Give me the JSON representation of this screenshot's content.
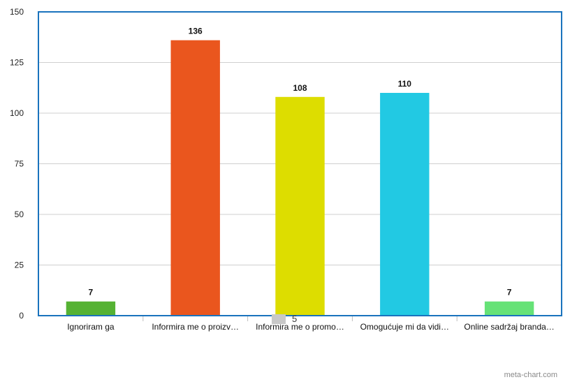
{
  "chart_data": {
    "type": "bar",
    "categories": [
      "Ignoriram ga",
      "Informira me o proizv…",
      "Informira me o promo…",
      "Omogućuje mi da vidi…",
      "Online sadržaj branda…"
    ],
    "values": [
      7,
      136,
      108,
      110,
      7
    ],
    "bar_colors": [
      "#55b233",
      "#ea561e",
      "#dddd00",
      "#22c9e3",
      "#66e277"
    ],
    "data_labels": [
      "7",
      "136",
      "108",
      "110",
      "7"
    ],
    "ylim": [
      0,
      150
    ],
    "yticks": [
      0,
      25,
      50,
      75,
      100,
      125,
      150
    ],
    "grid": true,
    "frame_color": "#1a73bd",
    "legend": {
      "position": "bottom",
      "label": "5",
      "color": "#c8c8c8"
    }
  },
  "credit": "meta-chart.com"
}
